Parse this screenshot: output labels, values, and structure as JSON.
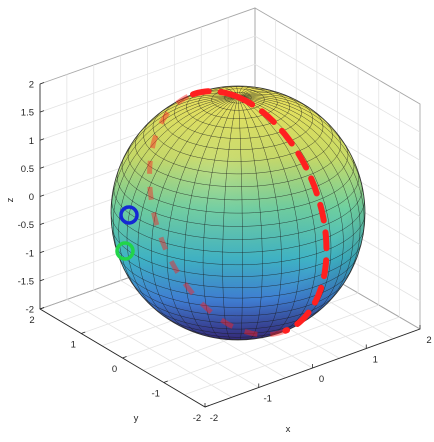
{
  "chart_data": {
    "type": "surface",
    "title": "",
    "xlabel": "x",
    "ylabel": "y",
    "zlabel": "z",
    "xlim": [
      -2,
      2
    ],
    "ylim": [
      -2,
      2
    ],
    "zlim": [
      -2,
      2
    ],
    "x_ticks": [
      "-2",
      "-1",
      "0",
      "1",
      "2"
    ],
    "y_ticks": [
      "-2",
      "-1",
      "0",
      "1",
      "2"
    ],
    "z_ticks": [
      "-2",
      "-1.5",
      "-1",
      "-0.5",
      "0",
      "0.5",
      "1",
      "1.5",
      "2"
    ],
    "grid": true,
    "surface": {
      "shape": "sphere",
      "center": [
        0,
        0,
        0
      ],
      "radius": 1.65,
      "colormap": "viridis-like (blue bottom to yellow top)"
    },
    "path": {
      "style": "dashed",
      "color": "#ff2020",
      "description": "great circle passing near both poles"
    },
    "markers": [
      {
        "name": "blue ring",
        "color": "#1428d4"
      },
      {
        "name": "green ring",
        "color": "#21d44a"
      }
    ]
  }
}
